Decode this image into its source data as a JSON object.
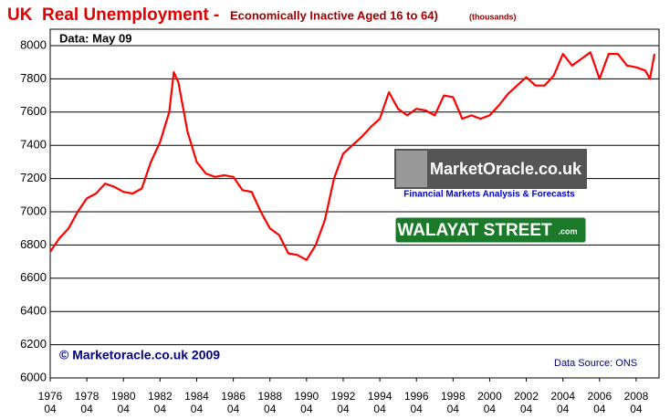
{
  "chart_data": {
    "type": "line",
    "title": "UK  Real Unemployment - ",
    "subtitle": "Economically Inactive Aged 16 to 64)",
    "unit_note": "(thousands)",
    "annotations": [
      "Data: May 09",
      "© Marketoracle.co.uk 2009",
      "Data Source: ONS"
    ],
    "logos": [
      "MarketOracle.co.uk",
      "Financial Markets Analysis & Forecasts",
      "WALAYAT STREET",
      ".com"
    ],
    "x": [
      1976.25,
      1976.75,
      1977.25,
      1977.75,
      1978.25,
      1978.75,
      1979.25,
      1979.75,
      1980.25,
      1980.75,
      1981.25,
      1981.75,
      1982.25,
      1982.75,
      1983.0,
      1983.25,
      1983.75,
      1984.25,
      1984.75,
      1985.25,
      1985.75,
      1986.25,
      1986.75,
      1987.25,
      1987.75,
      1988.25,
      1988.75,
      1989.25,
      1989.75,
      1990.25,
      1990.75,
      1991.25,
      1991.75,
      1992.25,
      1992.75,
      1993.25,
      1993.75,
      1994.25,
      1994.75,
      1995.25,
      1995.75,
      1996.25,
      1996.75,
      1997.25,
      1997.75,
      1998.25,
      1998.75,
      1999.25,
      1999.75,
      2000.25,
      2000.75,
      2001.25,
      2001.75,
      2002.25,
      2002.75,
      2003.25,
      2003.75,
      2004.25,
      2004.75,
      2005.25,
      2005.75,
      2006.25,
      2006.75,
      2007.25,
      2007.75,
      2008.25,
      2008.75,
      2009.0,
      2009.25
    ],
    "series": [
      {
        "name": "Economically Inactive",
        "color": "#ff0000",
        "values": [
          6760,
          6840,
          6900,
          7000,
          7080,
          7110,
          7170,
          7150,
          7120,
          7110,
          7140,
          7300,
          7420,
          7600,
          7840,
          7780,
          7480,
          7300,
          7230,
          7210,
          7220,
          7210,
          7130,
          7120,
          7000,
          6900,
          6860,
          6750,
          6740,
          6710,
          6800,
          6950,
          7200,
          7350,
          7400,
          7450,
          7510,
          7560,
          7720,
          7620,
          7580,
          7620,
          7610,
          7580,
          7700,
          7690,
          7560,
          7580,
          7560,
          7580,
          7640,
          7710,
          7760,
          7810,
          7760,
          7760,
          7820,
          7950,
          7880,
          7920,
          7960,
          7800,
          7950,
          7950,
          7880,
          7870,
          7850,
          7800,
          7950
        ]
      }
    ],
    "xlim": [
      1976.25,
      2009.5
    ],
    "xticks": [
      {
        "value": 1976.25,
        "label": "1976 04"
      },
      {
        "value": 1978.25,
        "label": "1978 04"
      },
      {
        "value": 1980.25,
        "label": "1980 04"
      },
      {
        "value": 1982.25,
        "label": "1982 04"
      },
      {
        "value": 1984.25,
        "label": "1984 04"
      },
      {
        "value": 1986.25,
        "label": "1986 04"
      },
      {
        "value": 1988.25,
        "label": "1988 04"
      },
      {
        "value": 1990.25,
        "label": "1990 04"
      },
      {
        "value": 1992.25,
        "label": "1992 04"
      },
      {
        "value": 1994.25,
        "label": "1994 04"
      },
      {
        "value": 1996.25,
        "label": "1996 04"
      },
      {
        "value": 1998.25,
        "label": "1998 04"
      },
      {
        "value": 2000.25,
        "label": "2000 04"
      },
      {
        "value": 2002.25,
        "label": "2002 04"
      },
      {
        "value": 2004.25,
        "label": "2004 04"
      },
      {
        "value": 2006.25,
        "label": "2006 04"
      },
      {
        "value": 2008.25,
        "label": "2008 04"
      }
    ],
    "ylim": [
      6000,
      8000
    ],
    "yticks": [
      6000,
      6200,
      6400,
      6600,
      6800,
      7000,
      7200,
      7400,
      7600,
      7800,
      8000
    ],
    "grid": true
  }
}
